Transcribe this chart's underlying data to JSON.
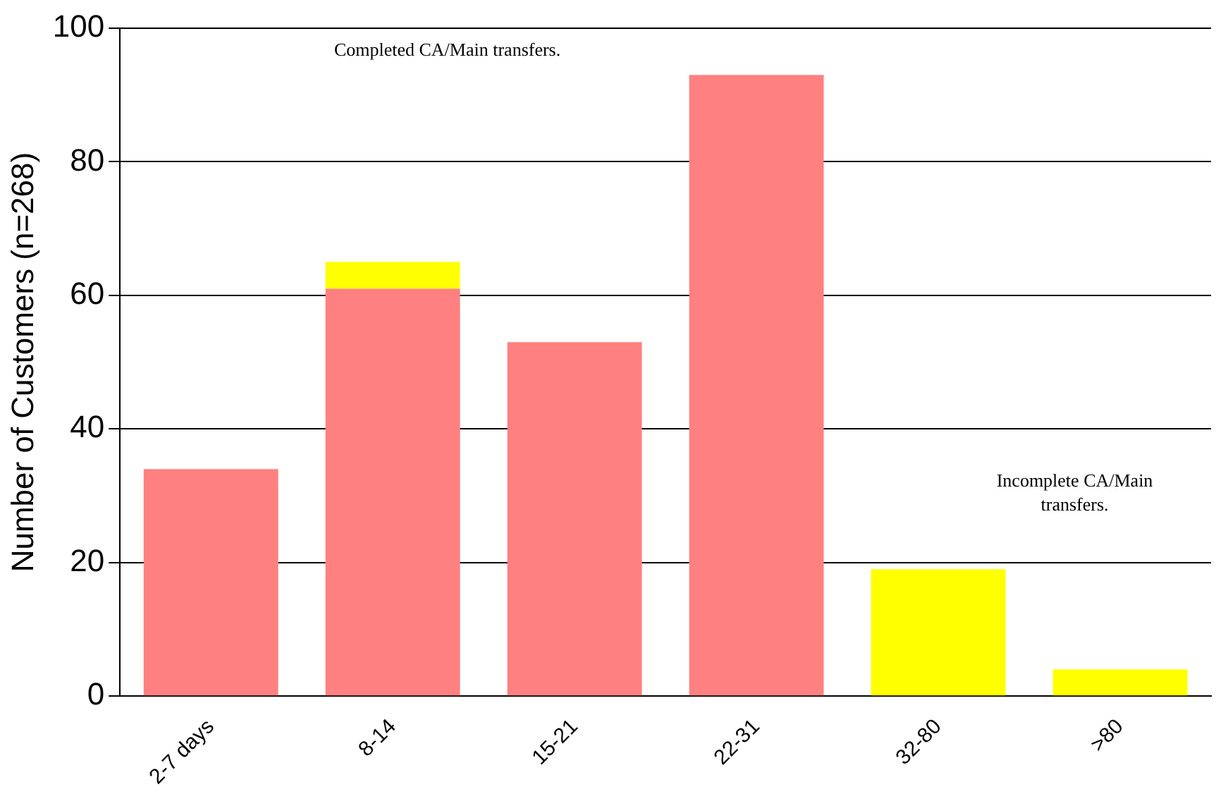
{
  "chart_data": {
    "type": "bar",
    "ylabel": "Number of Customers (n=268)",
    "categories": [
      "2-7 days",
      "8-14",
      "15-21",
      "22-31",
      "32-80",
      ">80"
    ],
    "stacked": true,
    "series": [
      {
        "color": "#ff8080",
        "values": [
          34,
          61,
          53,
          93,
          null,
          null
        ]
      },
      {
        "color": "#ffff00",
        "values": [
          null,
          4,
          null,
          null,
          19,
          4
        ]
      }
    ],
    "ylim": [
      0,
      100
    ],
    "yticks": [
      0,
      20,
      40,
      60,
      80,
      100
    ],
    "grid": "y",
    "legend": false,
    "annotations": [
      "Completed CA/Main transfers.",
      "Incomplete CA/Main transfers."
    ]
  }
}
